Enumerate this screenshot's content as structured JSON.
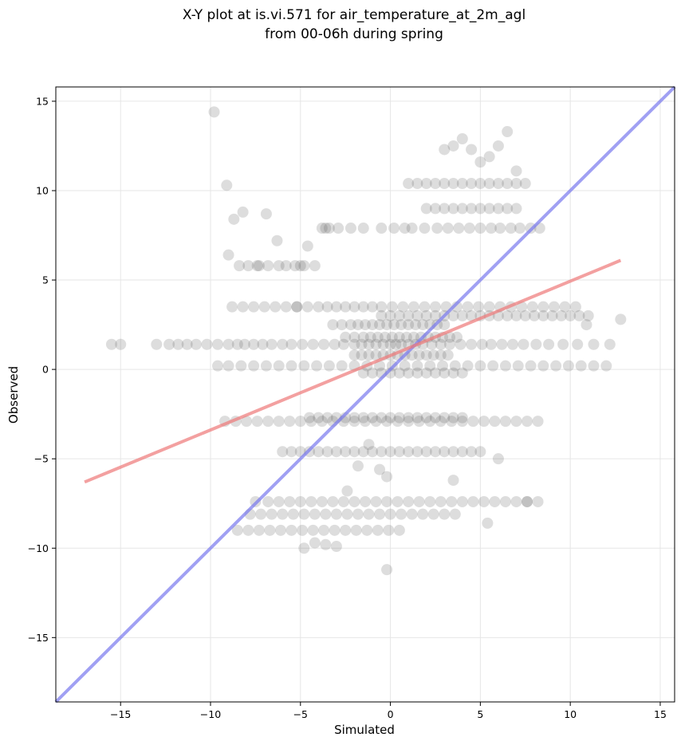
{
  "chart_data": {
    "type": "scatter",
    "title_line1": "X-Y plot at is.vi.571 for air_temperature_at_2m_agl",
    "title_line2": "from 00-06h during spring",
    "xlabel": "Simulated",
    "ylabel": "Observed",
    "xlim": [
      -18.6,
      15.8
    ],
    "ylim": [
      -18.6,
      15.8
    ],
    "xticks": [
      -15,
      -10,
      -5,
      0,
      5,
      10,
      15
    ],
    "yticks": [
      -15,
      -10,
      -5,
      0,
      5,
      10,
      15
    ],
    "xtick_labels": [
      "−15",
      "−10",
      "−5",
      "0",
      "5",
      "10",
      "15"
    ],
    "ytick_labels": [
      "−15",
      "−10",
      "−5",
      "0",
      "5",
      "10",
      "15"
    ],
    "grid": true,
    "colors": {
      "points": "#555555",
      "one_to_one_line": "#7777ee",
      "regression_line": "#ee7777",
      "grid": "#e6e6e6",
      "axes": "#000000"
    },
    "one_to_one_line": {
      "x": [
        -18.6,
        15.8
      ],
      "y": [
        -18.6,
        15.8
      ]
    },
    "regression_line": {
      "x": [
        -17.0,
        12.8
      ],
      "y": [
        -6.3,
        6.1
      ]
    },
    "points": {
      "x": [
        -15.0,
        -15.5,
        -13.0,
        -12.3,
        -11.8,
        -11.3,
        -10.8,
        -10.2,
        -9.6,
        -9.0,
        -8.5,
        -8.1,
        -7.6,
        -7.1,
        -6.6,
        -6.0,
        -5.5,
        -4.9,
        -4.3,
        -3.7,
        -3.1,
        -2.6,
        -2.0,
        -1.6,
        -1.2,
        -0.8,
        -0.4,
        0.0,
        0.3,
        0.6,
        1.0,
        1.4,
        1.8,
        2.3,
        2.8,
        3.3,
        3.9,
        4.5,
        5.1,
        5.6,
        6.2,
        6.8,
        7.4,
        8.1,
        8.8,
        9.6,
        10.4,
        11.3,
        12.2,
        12.8,
        -9.8,
        -9.1,
        -8.7,
        -8.2,
        -7.3,
        -6.9,
        -6.3,
        -5.0,
        -5.2,
        -4.6,
        -3.8,
        -3.4,
        -9.0,
        -8.4,
        -7.9,
        -7.4,
        -6.8,
        -6.2,
        -5.8,
        -5.3,
        -4.8,
        -4.2,
        -3.6,
        -2.9,
        -2.2,
        -1.5,
        -0.5,
        0.2,
        0.8,
        1.2,
        1.9,
        2.6,
        3.2,
        3.8,
        4.4,
        5.0,
        5.6,
        6.1,
        6.7,
        7.2,
        7.8,
        8.3,
        -8.8,
        -8.2,
        -7.6,
        -7.0,
        -6.4,
        -5.8,
        -5.2,
        -4.6,
        -4.0,
        -3.5,
        -3.0,
        -2.5,
        -2.0,
        -1.5,
        -1.0,
        -0.5,
        0.1,
        0.7,
        1.3,
        1.9,
        2.5,
        3.1,
        3.7,
        4.3,
        4.9,
        5.5,
        6.1,
        6.7,
        7.3,
        7.9,
        8.5,
        9.1,
        9.7,
        10.3,
        10.9,
        -3.2,
        -2.7,
        -2.2,
        -1.8,
        -1.4,
        -1.0,
        -0.6,
        -0.2,
        0.2,
        0.6,
        1.0,
        1.4,
        1.8,
        2.2,
        2.6,
        3.0,
        -2.5,
        -2.0,
        -1.5,
        -1.1,
        -0.7,
        -0.3,
        0.1,
        0.5,
        0.9,
        1.3,
        1.7,
        2.1,
        2.5,
        2.9,
        3.3,
        3.7,
        -2.0,
        -1.6,
        -1.2,
        -0.8,
        -0.4,
        0.0,
        0.4,
        0.8,
        1.2,
        1.6,
        2.0,
        2.4,
        2.8,
        3.2,
        -1.5,
        -1.0,
        -0.5,
        0.0,
        0.5,
        1.0,
        1.5,
        2.0,
        2.5,
        3.0,
        3.5,
        4.0,
        1.0,
        1.5,
        2.0,
        2.5,
        3.0,
        3.5,
        4.0,
        4.5,
        5.0,
        5.5,
        6.0,
        6.5,
        7.0,
        7.5,
        2.0,
        2.5,
        3.0,
        3.5,
        4.0,
        4.5,
        5.0,
        5.5,
        6.0,
        6.5,
        7.0,
        3.0,
        3.5,
        4.0,
        4.5,
        5.0,
        5.5,
        6.0,
        6.5,
        7.0,
        -0.5,
        0.0,
        0.5,
        1.0,
        1.5,
        2.0,
        2.5,
        3.0,
        3.5,
        4.0,
        4.5,
        5.0,
        5.5,
        6.0,
        6.5,
        7.0,
        7.5,
        8.0,
        8.5,
        9.0,
        9.5,
        10.0,
        10.5,
        11.0,
        -4.5,
        -4.0,
        -3.5,
        -3.0,
        -2.5,
        -2.0,
        -1.5,
        -1.0,
        -0.5,
        0.0,
        0.5,
        1.0,
        1.5,
        2.0,
        2.5,
        3.0,
        3.5,
        4.0,
        -6.0,
        -5.5,
        -5.0,
        -4.5,
        -4.0,
        -3.5,
        -3.0,
        -2.5,
        -2.0,
        -1.5,
        -1.0,
        -0.5,
        0.0,
        0.5,
        1.0,
        1.5,
        2.0,
        2.5,
        3.0,
        3.5,
        4.0,
        4.5,
        5.0,
        -7.5,
        -6.8,
        -6.2,
        -5.6,
        -5.0,
        -4.4,
        -3.8,
        -3.2,
        -2.6,
        -2.0,
        -1.4,
        -0.8,
        -0.2,
        0.4,
        1.0,
        1.6,
        2.2,
        2.8,
        3.4,
        4.0,
        4.6,
        5.2,
        5.8,
        6.4,
        7.0,
        7.6,
        8.2,
        -7.8,
        -7.2,
        -6.6,
        -6.0,
        -5.4,
        -4.8,
        -4.2,
        -3.6,
        -3.0,
        -2.4,
        -1.8,
        -1.2,
        -0.6,
        0.0,
        0.6,
        1.2,
        1.8,
        2.4,
        3.0,
        3.6,
        -8.5,
        -7.9,
        -7.3,
        -6.7,
        -6.1,
        -5.5,
        -4.9,
        -4.3,
        -3.7,
        -3.1,
        -2.5,
        -1.9,
        -1.3,
        -0.7,
        -0.1,
        0.5,
        -9.2,
        -8.6,
        -8.0,
        -7.4,
        -6.8,
        -6.2,
        -5.6,
        -5.0,
        -4.4,
        -3.8,
        -3.2,
        -2.6,
        -2.0,
        -1.4,
        -0.8,
        -0.2,
        0.4,
        1.0,
        1.6,
        2.2,
        2.8,
        3.4,
        4.0,
        4.6,
        5.2,
        5.8,
        6.4,
        7.0,
        7.6,
        8.2,
        -4.8,
        -4.2,
        -3.6,
        -3.0,
        -2.4,
        -1.8,
        -1.2,
        -0.6,
        -0.2,
        5.4,
        7.6,
        -0.2,
        3.5,
        6.0,
        -9.6,
        -9.0,
        -8.3,
        -7.6,
        -6.9,
        -6.2,
        -5.5,
        -4.8,
        -4.1,
        -3.4,
        -2.7,
        -2.0,
        -1.3,
        -0.6,
        0.1,
        0.8,
        1.5,
        2.2,
        2.9,
        3.6,
        4.3,
        5.0,
        5.7,
        6.4,
        7.1,
        7.8,
        8.5,
        9.2,
        9.9,
        10.6,
        11.3,
        12.0
      ],
      "y": [
        1.4,
        1.4,
        1.4,
        1.4,
        1.4,
        1.4,
        1.4,
        1.4,
        1.4,
        1.4,
        1.4,
        1.4,
        1.4,
        1.4,
        1.4,
        1.4,
        1.4,
        1.4,
        1.4,
        1.4,
        1.4,
        1.4,
        1.4,
        1.4,
        1.4,
        1.4,
        1.4,
        1.4,
        1.4,
        1.4,
        1.4,
        1.4,
        1.4,
        1.4,
        1.4,
        1.4,
        1.4,
        1.4,
        1.4,
        1.4,
        1.4,
        1.4,
        1.4,
        1.4,
        1.4,
        1.4,
        1.4,
        1.4,
        1.4,
        2.8,
        14.4,
        10.3,
        8.4,
        8.8,
        5.8,
        8.7,
        7.2,
        5.8,
        3.5,
        6.9,
        7.9,
        7.9,
        6.4,
        5.8,
        5.8,
        5.8,
        5.8,
        5.8,
        5.8,
        5.8,
        5.8,
        5.8,
        7.9,
        7.9,
        7.9,
        7.9,
        7.9,
        7.9,
        7.9,
        7.9,
        7.9,
        7.9,
        7.9,
        7.9,
        7.9,
        7.9,
        7.9,
        7.9,
        7.9,
        7.9,
        7.9,
        7.9,
        3.5,
        3.5,
        3.5,
        3.5,
        3.5,
        3.5,
        3.5,
        3.5,
        3.5,
        3.5,
        3.5,
        3.5,
        3.5,
        3.5,
        3.5,
        3.5,
        3.5,
        3.5,
        3.5,
        3.5,
        3.5,
        3.5,
        3.5,
        3.5,
        3.5,
        3.5,
        3.5,
        3.5,
        3.5,
        3.5,
        3.5,
        3.5,
        3.5,
        3.5,
        2.5,
        2.5,
        2.5,
        2.5,
        2.5,
        2.5,
        2.5,
        2.5,
        2.5,
        2.5,
        2.5,
        2.5,
        2.5,
        2.5,
        2.5,
        2.5,
        2.5,
        1.8,
        1.8,
        1.8,
        1.8,
        1.8,
        1.8,
        1.8,
        1.8,
        1.8,
        1.8,
        1.8,
        1.8,
        1.8,
        1.8,
        1.8,
        1.8,
        0.8,
        0.8,
        0.8,
        0.8,
        0.8,
        0.8,
        0.8,
        0.8,
        0.8,
        0.8,
        0.8,
        0.8,
        0.8,
        0.8,
        -0.2,
        -0.2,
        -0.2,
        -0.2,
        -0.2,
        -0.2,
        -0.2,
        -0.2,
        -0.2,
        -0.2,
        -0.2,
        -0.2,
        10.4,
        10.4,
        10.4,
        10.4,
        10.4,
        10.4,
        10.4,
        10.4,
        10.4,
        10.4,
        10.4,
        10.4,
        10.4,
        10.4,
        9.0,
        9.0,
        9.0,
        9.0,
        9.0,
        9.0,
        9.0,
        9.0,
        9.0,
        9.0,
        9.0,
        12.3,
        12.5,
        12.9,
        12.3,
        11.6,
        11.9,
        12.5,
        13.3,
        11.1,
        3.0,
        3.0,
        3.0,
        3.0,
        3.0,
        3.0,
        3.0,
        3.0,
        3.0,
        3.0,
        3.0,
        3.0,
        3.0,
        3.0,
        3.0,
        3.0,
        3.0,
        3.0,
        3.0,
        3.0,
        3.0,
        3.0,
        3.0,
        3.0,
        -2.7,
        -2.7,
        -2.7,
        -2.7,
        -2.7,
        -2.7,
        -2.7,
        -2.7,
        -2.7,
        -2.7,
        -2.7,
        -2.7,
        -2.7,
        -2.7,
        -2.7,
        -2.7,
        -2.7,
        -2.7,
        -4.6,
        -4.6,
        -4.6,
        -4.6,
        -4.6,
        -4.6,
        -4.6,
        -4.6,
        -4.6,
        -4.6,
        -4.6,
        -4.6,
        -4.6,
        -4.6,
        -4.6,
        -4.6,
        -4.6,
        -4.6,
        -4.6,
        -4.6,
        -4.6,
        -4.6,
        -4.6,
        -7.4,
        -7.4,
        -7.4,
        -7.4,
        -7.4,
        -7.4,
        -7.4,
        -7.4,
        -7.4,
        -7.4,
        -7.4,
        -7.4,
        -7.4,
        -7.4,
        -7.4,
        -7.4,
        -7.4,
        -7.4,
        -7.4,
        -7.4,
        -7.4,
        -7.4,
        -7.4,
        -7.4,
        -7.4,
        -7.4,
        -7.4,
        -8.1,
        -8.1,
        -8.1,
        -8.1,
        -8.1,
        -8.1,
        -8.1,
        -8.1,
        -8.1,
        -8.1,
        -8.1,
        -8.1,
        -8.1,
        -8.1,
        -8.1,
        -8.1,
        -8.1,
        -8.1,
        -8.1,
        -8.1,
        -9.0,
        -9.0,
        -9.0,
        -9.0,
        -9.0,
        -9.0,
        -9.0,
        -9.0,
        -9.0,
        -9.0,
        -9.0,
        -9.0,
        -9.0,
        -9.0,
        -9.0,
        -9.0,
        -2.9,
        -2.9,
        -2.9,
        -2.9,
        -2.9,
        -2.9,
        -2.9,
        -2.9,
        -2.9,
        -2.9,
        -2.9,
        -2.9,
        -2.9,
        -2.9,
        -2.9,
        -2.9,
        -2.9,
        -2.9,
        -2.9,
        -2.9,
        -2.9,
        -2.9,
        -2.9,
        -2.9,
        -2.9,
        -2.9,
        -2.9,
        -2.9,
        -2.9,
        -2.9,
        -10.0,
        -9.7,
        -9.8,
        -9.9,
        -6.8,
        -5.4,
        -4.2,
        -5.6,
        -11.2,
        -8.6,
        -7.4,
        -6.0,
        -6.2,
        -5.0,
        0.2,
        0.2,
        0.2,
        0.2,
        0.2,
        0.2,
        0.2,
        0.2,
        0.2,
        0.2,
        0.2,
        0.2,
        0.2,
        0.2,
        0.2,
        0.2,
        0.2,
        0.2,
        0.2,
        0.2,
        0.2,
        0.2,
        0.2,
        0.2,
        0.2,
        0.2,
        0.2,
        0.2,
        0.2,
        0.2,
        0.2,
        0.2
      ]
    }
  }
}
